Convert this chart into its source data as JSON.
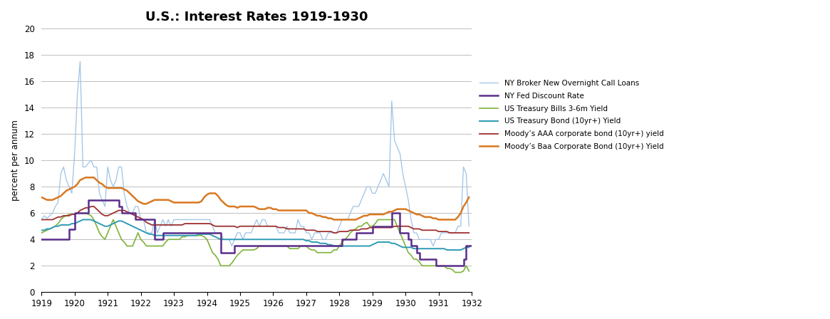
{
  "title": "U.S.: Interest Rates 1919-1930",
  "ylabel": "percent per annum",
  "xlim": [
    1919,
    1932
  ],
  "ylim": [
    0,
    20
  ],
  "yticks": [
    0,
    2,
    4,
    6,
    8,
    10,
    12,
    14,
    16,
    18,
    20
  ],
  "xticks": [
    1919,
    1920,
    1921,
    1922,
    1923,
    1924,
    1925,
    1926,
    1927,
    1928,
    1929,
    1930,
    1931,
    1932
  ],
  "background_color": "#ffffff",
  "grid_color": "#bebebe",
  "series": {
    "call_loans": {
      "label": "NY Broker New Overnight Call Loans",
      "color": "#9dc3e6",
      "linewidth": 0.9
    },
    "fed_discount": {
      "label": "NY Fed Discount Rate",
      "color": "#5a2d8a",
      "linewidth": 1.8
    },
    "tbills": {
      "label": "US Treasury Bills 3-6m Yield",
      "color": "#7db33a",
      "linewidth": 1.2
    },
    "tbond": {
      "label": "US Treasury Bond (10yr+) Yield",
      "color": "#2d9bb5",
      "linewidth": 1.4
    },
    "moody_aaa": {
      "label": "Moody’s AAA corporate bond (10yr+) yield",
      "color": "#9e3030",
      "linewidth": 1.3
    },
    "moody_baa": {
      "label": "Moody’s Baa Corporate Bond (10yr+) Yield",
      "color": "#d97820",
      "linewidth": 1.8
    }
  }
}
